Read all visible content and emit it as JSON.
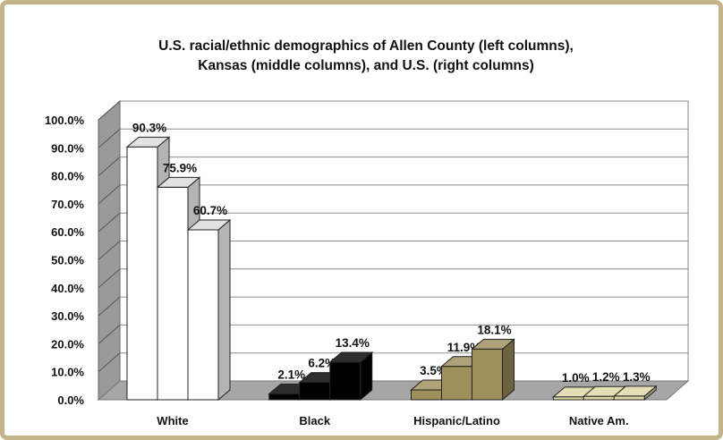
{
  "chart_data": {
    "type": "bar",
    "title_lines": [
      "U.S. racial/ethnic demographics of Allen County (left columns),",
      "Kansas (middle columns), and U.S. (right columns)"
    ],
    "categories": [
      "White",
      "Black",
      "Hispanic/Latino",
      "Native Am."
    ],
    "values": [
      [
        90.3,
        75.9,
        60.7
      ],
      [
        2.1,
        6.2,
        13.4
      ],
      [
        3.5,
        11.9,
        18.1
      ],
      [
        1.0,
        1.2,
        1.3
      ]
    ],
    "value_labels": [
      [
        "90.3%",
        "75.9%",
        "60.7%"
      ],
      [
        "2.1%",
        "6.2%",
        "13.4%"
      ],
      [
        "3.5%",
        "11.9%",
        "18.1%"
      ],
      [
        "1.0%",
        "1.2%",
        "1.3%"
      ]
    ],
    "yticks": [
      "0.0%",
      "10.0%",
      "20.0%",
      "30.0%",
      "40.0%",
      "50.0%",
      "60.0%",
      "70.0%",
      "80.0%",
      "90.0%",
      "100.0%"
    ],
    "ylim": [
      0,
      100
    ],
    "grid": true,
    "legend": "none",
    "category_colors": [
      "#ffffff",
      "#000000",
      "#9c8f5a",
      "#ddd7a6"
    ]
  }
}
